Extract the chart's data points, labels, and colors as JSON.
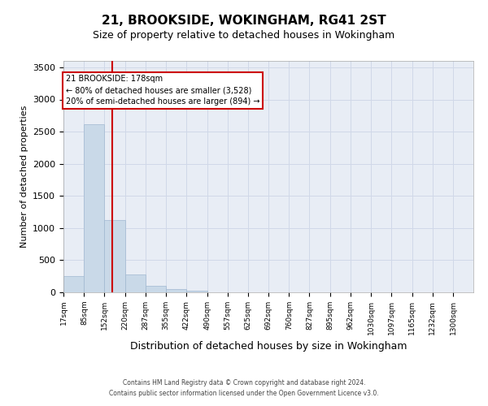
{
  "title": "21, BROOKSIDE, WOKINGHAM, RG41 2ST",
  "subtitle": "Size of property relative to detached houses in Wokingham",
  "xlabel": "Distribution of detached houses by size in Wokingham",
  "ylabel": "Number of detached properties",
  "footer_line1": "Contains HM Land Registry data © Crown copyright and database right 2024.",
  "footer_line2": "Contains public sector information licensed under the Open Government Licence v3.0.",
  "bar_edges": [
    17,
    85,
    152,
    220,
    287,
    355,
    422,
    490,
    557,
    625,
    692,
    760,
    827,
    895,
    962,
    1030,
    1097,
    1165,
    1232,
    1300,
    1367
  ],
  "bar_heights": [
    250,
    2620,
    1130,
    275,
    100,
    50,
    28,
    2,
    0,
    0,
    0,
    0,
    0,
    0,
    0,
    0,
    0,
    0,
    0,
    0
  ],
  "bar_color": "#c9d9e8",
  "bar_edge_color": "#a0b8d0",
  "red_line_x": 178,
  "annotation_title": "21 BROOKSIDE: 178sqm",
  "annotation_line1": "← 80% of detached houses are smaller (3,528)",
  "annotation_line2": "20% of semi-detached houses are larger (894) →",
  "annotation_box_color": "#ffffff",
  "annotation_box_edge_color": "#cc0000",
  "red_line_color": "#cc0000",
  "ylim": [
    0,
    3600
  ],
  "yticks": [
    0,
    500,
    1000,
    1500,
    2000,
    2500,
    3000,
    3500
  ],
  "grid_color": "#d0d8e8",
  "background_color": "#e8edf5",
  "title_fontsize": 11,
  "subtitle_fontsize": 9
}
